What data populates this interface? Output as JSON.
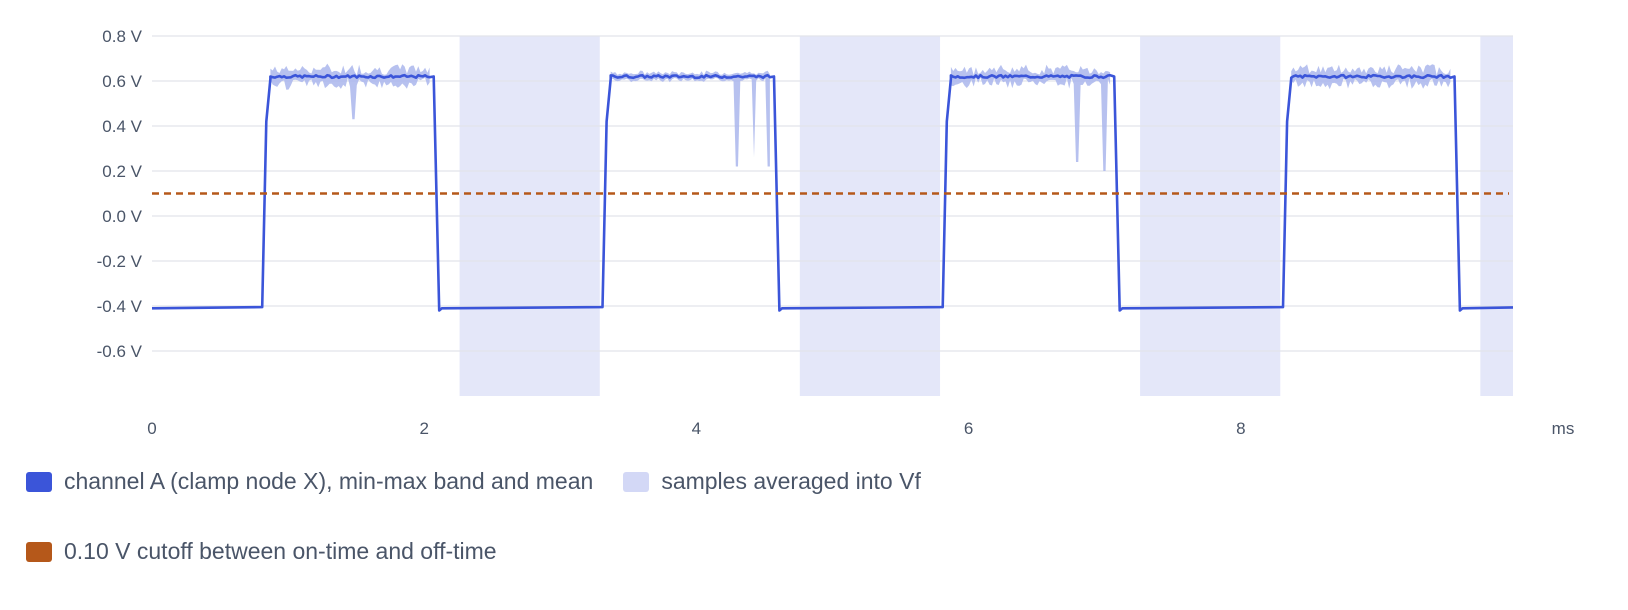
{
  "chart_data": {
    "type": "line",
    "title": "",
    "xlabel": "",
    "ylabel": "",
    "x_unit": "ms",
    "xlim": [
      0,
      10
    ],
    "ylim": [
      -0.8,
      0.8
    ],
    "x_ticks": [
      0,
      2,
      4,
      6,
      8
    ],
    "x_tick_labels": [
      "0",
      "2",
      "4",
      "6",
      "8"
    ],
    "y_ticks": [
      -0.6,
      -0.4,
      -0.2,
      0.0,
      0.2,
      0.4,
      0.6,
      0.8
    ],
    "y_tick_labels": [
      "-0.6 V",
      "-0.4 V",
      "-0.2 V",
      "0.0 V",
      "0.2 V",
      "0.4 V",
      "0.6 V",
      "0.8 V"
    ],
    "grid": "horizontal",
    "legend_position": "bottom",
    "series": [
      {
        "name": "channel A (clamp node X), min-max band and mean",
        "color": "#3b55d9",
        "band_color": "#aab6ec",
        "mean_on": 0.62,
        "mean_off": -0.41,
        "on_segments": [
          [
            0.82,
            2.08
          ],
          [
            3.32,
            4.58
          ],
          [
            5.82,
            7.08
          ],
          [
            8.32,
            9.58
          ]
        ],
        "spikes": [
          {
            "x": 1.48,
            "min": 0.43
          },
          {
            "x": 4.3,
            "min": 0.22
          },
          {
            "x": 4.42,
            "min": 0.26
          },
          {
            "x": 4.53,
            "min": 0.22
          },
          {
            "x": 6.8,
            "min": 0.24
          },
          {
            "x": 7.0,
            "min": 0.2
          }
        ],
        "noise_amplitude": [
          0.045,
          0.012,
          0.04,
          0.045
        ]
      },
      {
        "name": "samples averaged into Vf",
        "color": "#d3d8f6",
        "regions": [
          [
            2.26,
            3.29
          ],
          [
            4.76,
            5.79
          ],
          [
            7.26,
            8.29
          ],
          [
            9.76,
            10.0
          ]
        ]
      },
      {
        "name": "0.10 V cutoff between on-time and off-time",
        "color": "#b5581a",
        "y": 0.1
      }
    ]
  }
}
